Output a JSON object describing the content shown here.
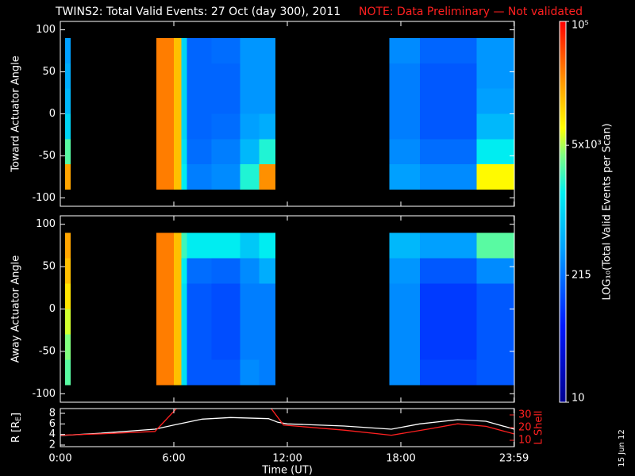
{
  "header": {
    "title": "TWINS2: Total Valid Events: 27 Oct (day 300), 2011",
    "note": "NOTE: Data Preliminary — Not validated",
    "stamp": "15 Jun 12"
  },
  "chart_data": [
    {
      "type": "heatmap",
      "ylabel": "Toward Actuator Angle",
      "x_edges": [
        0.25,
        0.55,
        5.08,
        6.0,
        6.4,
        6.7,
        8.0,
        9.5,
        10.5,
        11.38,
        17.4,
        19,
        22,
        24
      ],
      "y_edges": [
        -90,
        -60,
        -30,
        0,
        30,
        60,
        90
      ],
      "values": [
        [
          20000,
          null,
          30000,
          15000,
          1500,
          250,
          300,
          2000,
          25000,
          null,
          400,
          300,
          8000
        ],
        [
          3000,
          null,
          30000,
          15000,
          1200,
          200,
          250,
          600,
          2000,
          null,
          300,
          200,
          1500
        ],
        [
          1000,
          null,
          30000,
          15000,
          1000,
          180,
          200,
          400,
          500,
          null,
          250,
          150,
          600
        ],
        [
          600,
          null,
          30000,
          15000,
          1000,
          180,
          180,
          350,
          350,
          null,
          250,
          150,
          400
        ],
        [
          500,
          null,
          30000,
          15000,
          1000,
          180,
          180,
          350,
          350,
          null,
          250,
          150,
          350
        ],
        [
          400,
          null,
          30000,
          15000,
          1000,
          180,
          200,
          350,
          350,
          null,
          300,
          180,
          350
        ]
      ],
      "ylim": [
        -110,
        110
      ],
      "yticks": [
        100,
        50,
        0,
        -50,
        -100
      ],
      "clim": [
        10,
        100000
      ],
      "log": true,
      "colorscale": [
        [
          0,
          "#000090"
        ],
        [
          0.2,
          "#0018ff"
        ],
        [
          0.4,
          "#00a0ff"
        ],
        [
          0.55,
          "#00f0f0"
        ],
        [
          0.65,
          "#80ff80"
        ],
        [
          0.72,
          "#ffff00"
        ],
        [
          0.85,
          "#ff9000"
        ],
        [
          1,
          "#ff0000"
        ]
      ],
      "cticks": [
        10,
        215,
        {
          "value": 5000,
          "label": "5x10³"
        },
        {
          "value": 100000,
          "label": "10⁵"
        }
      ],
      "colorbar_label": "LOG₁₀(Total Valid Events per Scan)"
    },
    {
      "type": "heatmap",
      "ylabel": "Away Actuator Angle",
      "x_edges": [
        0.25,
        0.55,
        5.08,
        6.0,
        6.4,
        6.7,
        8.0,
        9.5,
        10.5,
        11.38,
        17.4,
        19,
        22,
        24
      ],
      "y_edges": [
        -90,
        -60,
        -30,
        0,
        30,
        60,
        90
      ],
      "values": [
        [
          3000,
          null,
          30000,
          15000,
          1200,
          150,
          150,
          300,
          250,
          null,
          300,
          120,
          150
        ],
        [
          4000,
          null,
          30000,
          15000,
          1200,
          150,
          130,
          250,
          250,
          null,
          300,
          100,
          150
        ],
        [
          6000,
          null,
          30000,
          15000,
          1200,
          150,
          130,
          250,
          250,
          null,
          300,
          100,
          150
        ],
        [
          10000,
          null,
          30000,
          15000,
          1200,
          150,
          130,
          250,
          250,
          null,
          300,
          100,
          150
        ],
        [
          15000,
          null,
          30000,
          15000,
          1500,
          200,
          180,
          300,
          500,
          null,
          350,
          150,
          300
        ],
        [
          20000,
          null,
          30000,
          15000,
          2500,
          1500,
          1500,
          800,
          1500,
          null,
          600,
          400,
          3000
        ]
      ],
      "ylim": [
        -110,
        110
      ],
      "yticks": [
        100,
        50,
        0,
        -50,
        -100
      ]
    },
    {
      "type": "line",
      "ylabel": [
        "R [R",
        "E",
        "]"
      ],
      "y2label": "L Shell",
      "xlabel": "Time (UT)",
      "xlim": [
        0,
        24
      ],
      "xticks": [
        {
          "value": 0,
          "label": "0:00"
        },
        {
          "value": 6,
          "label": "6:00"
        },
        {
          "value": 12,
          "label": "12:00"
        },
        {
          "value": 18,
          "label": "18:00"
        },
        {
          "value": 23.983,
          "label": "23:59"
        }
      ],
      "ylim": [
        1.7,
        8.9
      ],
      "yticks": [
        2,
        4,
        6,
        8
      ],
      "y2lim": [
        5,
        35
      ],
      "y2ticks": [
        10,
        20,
        30
      ],
      "series": [
        {
          "name": "R",
          "color": "#ffffff",
          "x": [
            0,
            2,
            5,
            6,
            7.5,
            9,
            11,
            11.5,
            12,
            15,
            17.5,
            19,
            21,
            22.5,
            24
          ],
          "values": [
            3.8,
            4.2,
            5,
            5.8,
            6.9,
            7.2,
            7,
            6.3,
            6,
            5.6,
            5,
            6,
            6.8,
            6.5,
            5
          ]
        },
        {
          "name": "L Shell",
          "color": "#ff2020",
          "axis": "y2",
          "x": [
            0,
            2,
            5,
            6.2,
            null,
            11.1,
            11.8,
            15,
            17.5,
            19.5,
            21,
            22.5,
            24
          ],
          "values": [
            14,
            15,
            17,
            36,
            null,
            36,
            22,
            18,
            14,
            19,
            23,
            21,
            15
          ]
        }
      ]
    }
  ]
}
